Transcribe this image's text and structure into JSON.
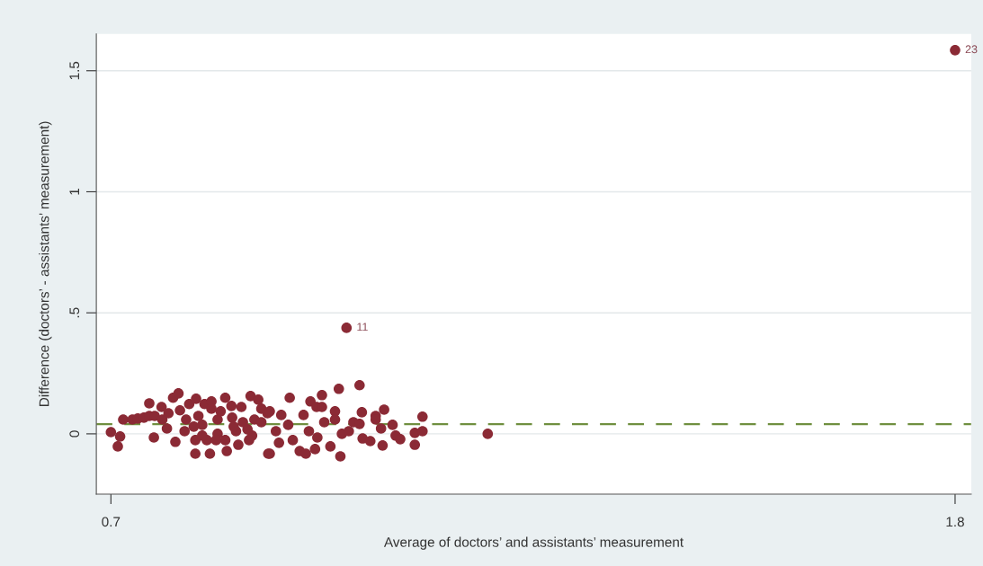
{
  "chart_data": {
    "type": "scatter",
    "xlabel": "Average of doctors’ and assistants’ measurement",
    "ylabel": "Difference (doctors’ - assistants’ measurement)",
    "x": [
      0.7,
      0.712,
      0.709,
      0.716,
      0.728,
      0.735,
      0.743,
      0.75,
      0.75,
      0.757,
      0.756,
      0.766,
      0.767,
      0.781,
      0.788,
      0.784,
      0.775,
      0.773,
      0.79,
      0.798,
      0.796,
      0.802,
      0.811,
      0.814,
      0.81,
      0.81,
      0.822,
      0.819,
      0.831,
      0.831,
      0.829,
      0.825,
      0.839,
      0.839,
      0.849,
      0.851,
      0.849,
      0.857,
      0.858,
      0.863,
      0.87,
      0.872,
      0.882,
      0.887,
      0.892,
      0.896,
      0.884,
      0.905,
      0.915,
      0.904,
      0.88,
      0.907,
      0.907,
      0.922,
      0.933,
      0.919,
      0.931,
      0.937,
      0.946,
      0.954,
      0.951,
      0.96,
      0.958,
      0.966,
      0.968,
      0.975,
      0.975,
      0.978,
      0.969,
      0.986,
      0.992,
      0.992,
      0.997,
      0.999,
      1.001,
      1.01,
      1.016,
      1.024,
      1.027,
      1.024,
      1.028,
      1.038,
      1.045,
      1.045,
      1.056,
      1.052,
      1.054,
      1.067,
      1.071,
      1.077,
      1.096,
      1.096,
      1.106,
      1.106,
      1.191,
      0.808,
      0.837,
      0.86,
      0.819,
      0.878,
      0.896,
      0.843,
      0.866,
      1.007,
      1.8
    ],
    "series": [
      {
        "color": "#8b2a35",
        "values": [
          0.007,
          -0.011,
          -0.052,
          0.059,
          0.059,
          0.063,
          0.067,
          0.126,
          0.074,
          0.074,
          -0.015,
          0.111,
          0.059,
          0.149,
          0.167,
          -0.033,
          0.085,
          0.022,
          0.097,
          0.059,
          0.011,
          0.123,
          0.145,
          0.074,
          -0.026,
          -0.082,
          0.123,
          0.037,
          0.134,
          0.104,
          -0.082,
          -0.026,
          0.059,
          0,
          0.149,
          -0.071,
          -0.026,
          0.115,
          0.067,
          0.011,
          0.111,
          0.048,
          0.156,
          0.059,
          0.141,
          0.104,
          -0.007,
          -0.082,
          0.011,
          0.085,
          -0.026,
          0.093,
          -0.082,
          0.078,
          0.149,
          -0.037,
          0.037,
          -0.026,
          -0.071,
          -0.082,
          0.078,
          0.134,
          0.011,
          -0.063,
          0.111,
          0.16,
          0.111,
          0.048,
          -0.015,
          -0.052,
          0.093,
          0.059,
          0.186,
          -0.093,
          0,
          0.011,
          0.048,
          0.201,
          0.089,
          0.041,
          -0.019,
          -0.03,
          0.074,
          0.059,
          0.1,
          0.022,
          -0.048,
          0.037,
          -0.007,
          -0.022,
          0.004,
          -0.045,
          0.071,
          0.011,
          0,
          0.03,
          -0.026,
          0.03,
          -0.007,
          0.019,
          0.048,
          0.093,
          -0.045,
          0.438,
          1.585
        ]
      }
    ],
    "marker": "circle",
    "xlim": [
      0.681,
      1.821
    ],
    "ylim": [
      -0.249,
      1.652
    ],
    "xticks": [
      0.7,
      1.8
    ],
    "yticks": [
      0,
      {
        "value": 0.5,
        "label": ".5"
      },
      1,
      1.5
    ],
    "grid": "y",
    "ref_lines": [
      {
        "axis": "y",
        "value": 0.04,
        "color": "#6f8f3f",
        "line_style": "dashed"
      }
    ],
    "annotations": [
      {
        "text": "11",
        "x": 1.007,
        "y": 0.438
      },
      {
        "text": "23",
        "x": 1.8,
        "y": 1.585
      }
    ]
  }
}
